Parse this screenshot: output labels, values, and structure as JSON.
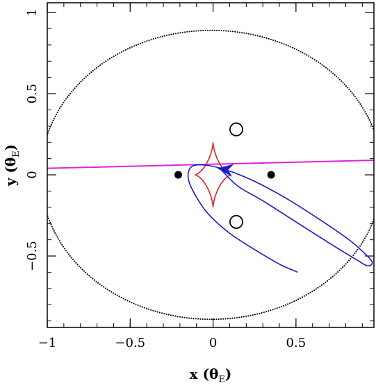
{
  "chart_data": {
    "type": "scatter",
    "title": "",
    "xlabel": "x (θ_E)",
    "ylabel": "y (θ_E)",
    "xlabel_parts": {
      "main": "x (θ",
      "sub": "E",
      "close": ")"
    },
    "ylabel_parts": {
      "main": "y (θ",
      "sub": "E",
      "close": ")"
    },
    "xlim": [
      -1.0,
      0.97
    ],
    "ylim": [
      -0.94,
      1.06
    ],
    "x_ticks": [
      {
        "value": -1.0,
        "label": "−1"
      },
      {
        "value": -0.5,
        "label": "−0.5"
      },
      {
        "value": 0.0,
        "label": "0"
      },
      {
        "value": 0.5,
        "label": "0.5"
      }
    ],
    "y_ticks": [
      {
        "value": -0.5,
        "label": "−0.5"
      },
      {
        "value": 0.0,
        "label": "0"
      },
      {
        "value": 0.5,
        "label": "0.5"
      },
      {
        "value": 1.0,
        "label": "1"
      }
    ],
    "x_minor_step": 0.1,
    "y_minor_step": 0.1,
    "grid": false,
    "critical_curve": {
      "color": "#000000",
      "style": "dotted",
      "ellipse": {
        "cx": -0.01,
        "cy": 0.0,
        "rx": 1.03,
        "ry": 0.89
      }
    },
    "caustic": {
      "color": "#dd2222",
      "center": [
        0.0,
        0.0
      ],
      "half_width": 0.11,
      "half_height": 0.2
    },
    "lenses": [
      {
        "x": -0.21,
        "y": 0.0
      },
      {
        "x": 0.35,
        "y": 0.0
      }
    ],
    "images": [
      {
        "x": 0.14,
        "y": 0.28,
        "r": 0.038
      },
      {
        "x": 0.14,
        "y": -0.29,
        "r": 0.038
      }
    ],
    "trajectory": {
      "color": "#dd22dd",
      "points": [
        [
          -1.0,
          0.04
        ],
        [
          0.97,
          0.09
        ]
      ]
    },
    "orbit": {
      "color": "#1a1acc",
      "points": [
        [
          0.51,
          -0.6
        ],
        [
          0.4,
          -0.55
        ],
        [
          0.25,
          -0.46
        ],
        [
          0.1,
          -0.36
        ],
        [
          -0.03,
          -0.24
        ],
        [
          -0.11,
          -0.12
        ],
        [
          -0.15,
          -0.02
        ],
        [
          -0.13,
          0.05
        ],
        [
          -0.05,
          0.06
        ],
        [
          0.08,
          0.03
        ],
        [
          0.25,
          -0.04
        ],
        [
          0.45,
          -0.15
        ],
        [
          0.65,
          -0.28
        ],
        [
          0.82,
          -0.4
        ],
        [
          0.92,
          -0.49
        ],
        [
          0.96,
          -0.54
        ],
        [
          0.93,
          -0.56
        ],
        [
          0.86,
          -0.52
        ],
        [
          0.7,
          -0.42
        ],
        [
          0.5,
          -0.29
        ],
        [
          0.3,
          -0.16
        ],
        [
          0.15,
          -0.07
        ],
        [
          0.05,
          0.03
        ]
      ],
      "arrow": {
        "tip": [
          0.03,
          0.04
        ],
        "from": [
          0.1,
          0.03
        ]
      }
    }
  }
}
